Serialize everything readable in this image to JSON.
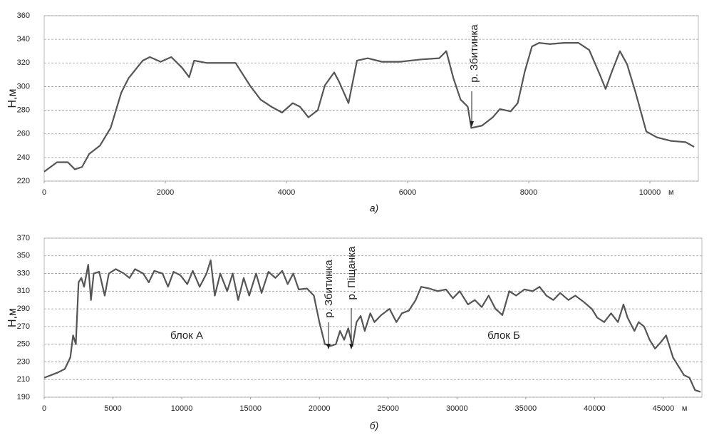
{
  "chart_data": [
    {
      "type": "line",
      "caption": "а)",
      "ylabel": "H,м",
      "x_unit": "м",
      "annotations": [
        "р. Збитинка"
      ],
      "xlim": [
        0,
        10800
      ],
      "xticks": [
        0,
        2000,
        4000,
        6000,
        8000,
        10000
      ],
      "ylim": [
        220,
        360
      ],
      "yticks": [
        220,
        240,
        260,
        280,
        300,
        320,
        340,
        360
      ],
      "grid": true,
      "series": [
        {
          "color": "#555555",
          "x": [
            0,
            212,
            390,
            507,
            625,
            743,
            920,
            1097,
            1274,
            1392,
            1627,
            1745,
            1922,
            2099,
            2276,
            2394,
            2476,
            2689,
            2925,
            3160,
            3396,
            3573,
            3750,
            3927,
            4104,
            4222,
            4363,
            4517,
            4634,
            4788,
            4870,
            5024,
            5165,
            5342,
            5578,
            5873,
            6226,
            6521,
            6639,
            6757,
            6875,
            6993,
            7052,
            7229,
            7406,
            7524,
            7700,
            7818,
            7936,
            8054,
            8172,
            8349,
            8585,
            8821,
            8998,
            9175,
            9269,
            9375,
            9505,
            9623,
            9764,
            9941,
            10118,
            10354,
            10590,
            10731
          ],
          "values": [
            228,
            236,
            236,
            230,
            232,
            243,
            250,
            265,
            295,
            307,
            322,
            325,
            321,
            325,
            316,
            308,
            322,
            320,
            320,
            320,
            301,
            289,
            283,
            278,
            286,
            283,
            274,
            280,
            301,
            312,
            304,
            286,
            322,
            324,
            321,
            321,
            323,
            324,
            330,
            307,
            289,
            283,
            265,
            267,
            274,
            281,
            279,
            286,
            313,
            334,
            337,
            336,
            337,
            337,
            331,
            310,
            298,
            313,
            330,
            319,
            295,
            262,
            257,
            254,
            253,
            249
          ]
        }
      ]
    },
    {
      "type": "line",
      "caption": "б)",
      "ylabel": "H,м",
      "x_unit": "м",
      "annotations": [
        "р. Збитинка",
        "р. Піщанка",
        "блок А",
        "блок Б"
      ],
      "xlim": [
        0,
        47800
      ],
      "xticks": [
        0,
        5000,
        10000,
        15000,
        20000,
        25000,
        30000,
        35000,
        40000,
        45000
      ],
      "ylim": [
        190,
        370
      ],
      "yticks": [
        190,
        210,
        230,
        250,
        270,
        290,
        310,
        330,
        350,
        370
      ],
      "grid": true,
      "series": [
        {
          "color": "#555555",
          "x": [
            0,
            1000,
            1500,
            1900,
            2100,
            2300,
            2500,
            2700,
            2900,
            3200,
            3400,
            3600,
            4000,
            4400,
            4700,
            5200,
            5800,
            6200,
            6600,
            7200,
            7600,
            8000,
            8600,
            9000,
            9400,
            9900,
            10400,
            10800,
            11300,
            11800,
            12100,
            12400,
            12800,
            13300,
            13700,
            14100,
            14500,
            14900,
            15400,
            15800,
            16300,
            16800,
            17300,
            17700,
            18100,
            18500,
            19100,
            19600,
            20000,
            20400,
            20800,
            21200,
            21500,
            21800,
            22100,
            22400,
            22700,
            23000,
            23300,
            23700,
            24000,
            24500,
            25100,
            25600,
            26000,
            26500,
            27000,
            27400,
            28000,
            28600,
            29200,
            29700,
            30200,
            30800,
            31300,
            31800,
            32300,
            32800,
            33300,
            33800,
            34300,
            34900,
            35500,
            36000,
            36500,
            37000,
            37500,
            38100,
            38600,
            39200,
            39800,
            40200,
            40700,
            41200,
            41700,
            42100,
            42400,
            42900,
            43200,
            43600,
            44000,
            44400,
            44800,
            45200,
            45700,
            46100,
            46500,
            46900,
            47300,
            47700
          ],
          "values": [
            212,
            218,
            222,
            235,
            260,
            250,
            320,
            325,
            315,
            340,
            300,
            330,
            332,
            305,
            330,
            335,
            330,
            325,
            335,
            330,
            320,
            333,
            330,
            315,
            332,
            328,
            318,
            333,
            315,
            330,
            345,
            305,
            330,
            310,
            330,
            300,
            325,
            305,
            330,
            308,
            332,
            325,
            333,
            318,
            330,
            312,
            313,
            305,
            275,
            250,
            248,
            250,
            265,
            255,
            268,
            248,
            275,
            282,
            265,
            285,
            275,
            283,
            290,
            275,
            285,
            288,
            300,
            315,
            313,
            310,
            312,
            302,
            310,
            295,
            300,
            292,
            305,
            290,
            283,
            310,
            305,
            312,
            310,
            315,
            305,
            300,
            308,
            300,
            305,
            298,
            290,
            280,
            275,
            285,
            275,
            295,
            280,
            265,
            275,
            270,
            255,
            245,
            252,
            260,
            235,
            225,
            215,
            212,
            198,
            196
          ]
        }
      ]
    }
  ]
}
